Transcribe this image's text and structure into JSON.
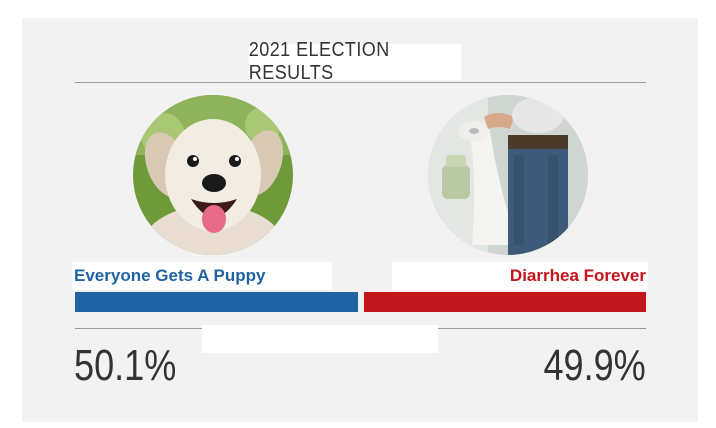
{
  "header": {
    "title": "2021 ELECTION RESULTS"
  },
  "candidates": [
    {
      "name": "Everyone Gets A Puppy",
      "percent_label": "50.1%",
      "share": 50.1,
      "color": "#1f63a3",
      "icon": "puppy-photo"
    },
    {
      "name": "Diarrhea Forever",
      "percent_label": "49.9%",
      "share": 49.9,
      "color": "#c3161c",
      "icon": "toilet-photo"
    }
  ],
  "colors": {
    "background": "#f2f2f2",
    "text": "#333333",
    "rule": "#9a9a9a"
  }
}
